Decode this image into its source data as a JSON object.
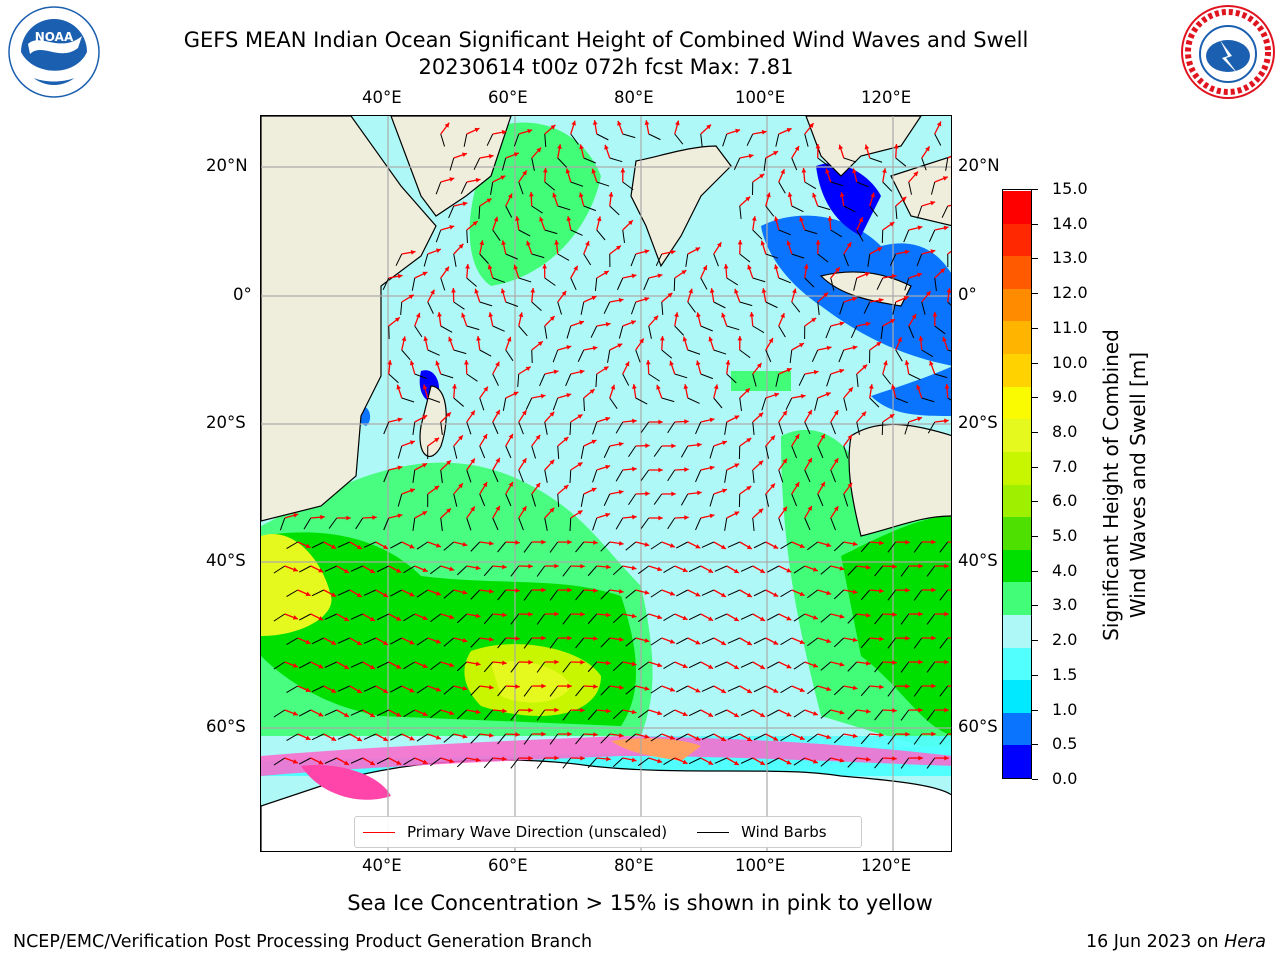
{
  "header": {
    "title_line1": "GEFS MEAN Indian Ocean Significant Height of Combined Wind Waves and Swell",
    "title_line2": "20230614 t00z 072h fcst   Max: 7.81"
  },
  "logos": {
    "left": {
      "icon": "noaa-logo-icon",
      "text": "NOAA",
      "color": "#1b5fb0"
    },
    "right": {
      "icon": "national-weather-service-logo-icon",
      "text": "NATIONAL WEATHER SERVICE",
      "color": "#1b5fb0",
      "ring_color": "#e0141e"
    }
  },
  "map": {
    "region": "Indian Ocean",
    "lon_ticks_top": [
      "40°E",
      "60°E",
      "80°E",
      "100°E",
      "120°E"
    ],
    "lon_ticks_bottom": [
      "40°E",
      "60°E",
      "80°E",
      "100°E",
      "120°E"
    ],
    "lat_ticks_left": [
      "20°N",
      "0°",
      "20°S",
      "40°S",
      "60°S"
    ],
    "lat_ticks_right": [
      "20°N",
      "0°",
      "20°S",
      "40°S",
      "60°S"
    ],
    "colors": {
      "land": "#efeddb",
      "ice_shelf": "#ffffff",
      "coastline": "#000000",
      "wave_arrow": "#ff0000",
      "wind_barb": "#000000"
    }
  },
  "colorbar": {
    "label_line1": "Significant Height of Combined",
    "label_line2": "Wind Waves and Swell [m]",
    "ticks": [
      "15.0",
      "14.0",
      "13.0",
      "12.0",
      "11.0",
      "10.0",
      "9.0",
      "8.0",
      "7.0",
      "6.0",
      "5.0",
      "4.0",
      "3.0",
      "2.0",
      "1.5",
      "1.0",
      "0.5",
      "0.0"
    ],
    "colors": [
      "#0000ff",
      "#0a74ff",
      "#00e9ff",
      "#52ffff",
      "#aef9f7",
      "#42fd78",
      "#00e000",
      "#4ee000",
      "#9ef000",
      "#c8f500",
      "#e6f91e",
      "#fafa00",
      "#ffd200",
      "#ffb400",
      "#ff8c00",
      "#ff5a00",
      "#ff2800",
      "#ff0000"
    ]
  },
  "legend": {
    "primary_wave_direction": "Primary Wave Direction (unscaled)",
    "wind_barbs": "Wind Barbs"
  },
  "footer": {
    "ice_note": "Sea Ice Concentration > 15% is shown in pink to yellow",
    "credit": "NCEP/EMC/Verification Post Processing Product Generation Branch",
    "date": "16 Jun 2023 on ",
    "host": "Hera"
  }
}
